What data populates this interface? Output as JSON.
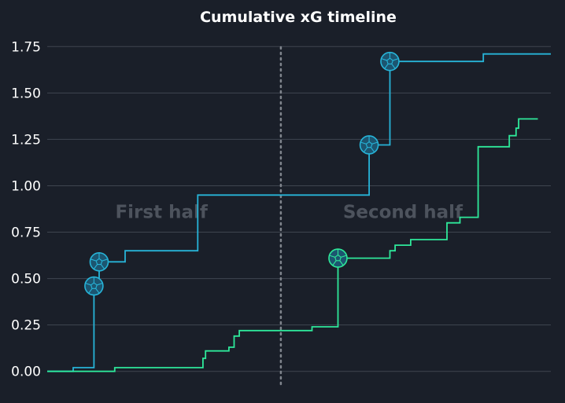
{
  "chart_data": {
    "type": "line",
    "step": true,
    "title": "Cumulative xG timeline",
    "xlabel": "",
    "ylabel": "",
    "xlim": [
      0,
      97
    ],
    "ylim": [
      -0.09,
      1.84
    ],
    "yticks": [
      0.0,
      0.25,
      0.5,
      0.75,
      1.0,
      1.25,
      1.5,
      1.75
    ],
    "ytick_labels": [
      "0.00",
      "0.25",
      "0.50",
      "0.75",
      "1.00",
      "1.25",
      "1.50",
      "1.75"
    ],
    "grid": true,
    "halftime_minute": 45,
    "annotations": [
      {
        "text": "First half",
        "x": 22,
        "y": 0.86
      },
      {
        "text": "Second half",
        "x": 68.5,
        "y": 0.86
      }
    ],
    "series": [
      {
        "color": "#27b4d8",
        "points": [
          [
            0,
            0.0
          ],
          [
            5,
            0.0
          ],
          [
            5,
            0.02
          ],
          [
            9,
            0.02
          ],
          [
            9,
            0.46
          ],
          [
            10,
            0.46
          ],
          [
            10,
            0.59
          ],
          [
            15,
            0.59
          ],
          [
            15,
            0.65
          ],
          [
            29,
            0.65
          ],
          [
            29,
            0.95
          ],
          [
            62,
            0.95
          ],
          [
            62,
            1.22
          ],
          [
            66,
            1.22
          ],
          [
            66,
            1.67
          ],
          [
            84,
            1.67
          ],
          [
            84,
            1.71
          ],
          [
            97,
            1.71
          ]
        ],
        "goals": [
          [
            9,
            0.46
          ],
          [
            10,
            0.59
          ],
          [
            62,
            1.22
          ],
          [
            66,
            1.67
          ]
        ]
      },
      {
        "color": "#2ee89a",
        "points": [
          [
            0,
            0.0
          ],
          [
            13,
            0.0
          ],
          [
            13,
            0.02
          ],
          [
            30,
            0.02
          ],
          [
            30,
            0.07
          ],
          [
            30.5,
            0.07
          ],
          [
            30.5,
            0.11
          ],
          [
            35,
            0.11
          ],
          [
            35,
            0.13
          ],
          [
            36,
            0.13
          ],
          [
            36,
            0.19
          ],
          [
            37,
            0.19
          ],
          [
            37,
            0.22
          ],
          [
            51,
            0.22
          ],
          [
            51,
            0.24
          ],
          [
            56,
            0.24
          ],
          [
            56,
            0.61
          ],
          [
            66,
            0.61
          ],
          [
            66,
            0.65
          ],
          [
            67,
            0.65
          ],
          [
            67,
            0.68
          ],
          [
            70,
            0.68
          ],
          [
            70,
            0.71
          ],
          [
            77,
            0.71
          ],
          [
            77,
            0.8
          ],
          [
            79.5,
            0.8
          ],
          [
            79.5,
            0.83
          ],
          [
            83,
            0.83
          ],
          [
            83,
            1.21
          ],
          [
            89,
            1.21
          ],
          [
            89,
            1.27
          ],
          [
            90.3,
            1.27
          ],
          [
            90.3,
            1.31
          ],
          [
            90.8,
            1.31
          ],
          [
            90.8,
            1.36
          ],
          [
            94.5,
            1.36
          ]
        ],
        "goals": [
          [
            56,
            0.61
          ]
        ]
      }
    ]
  }
}
